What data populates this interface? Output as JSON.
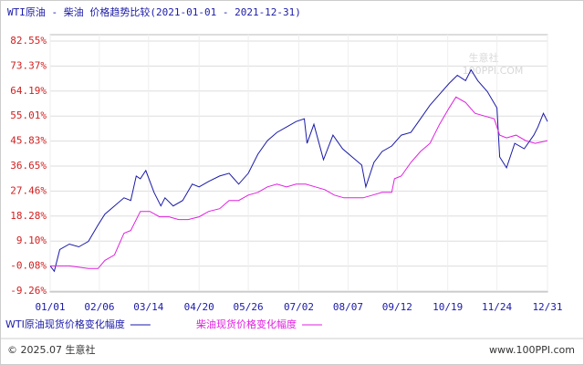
{
  "chart_data": {
    "type": "line",
    "title": "WTI原油 - 柴油 价格趋势比较(2021-01-01 - 2021-12-31)",
    "watermark": "生意社",
    "watermark_sub": "100PPI.COM",
    "footer_left": "© 2025.07 生意社",
    "footer_right": "www.100PPI.com",
    "ylim": [
      -9.26,
      82.55
    ],
    "yticks": [
      {
        "value": -9.26,
        "label": "-9.26%"
      },
      {
        "value": -0.08,
        "label": "-0.08%"
      },
      {
        "value": 9.1,
        "label": "9.10%"
      },
      {
        "value": 18.28,
        "label": "18.28%"
      },
      {
        "value": 27.46,
        "label": "27.46%"
      },
      {
        "value": 36.65,
        "label": "36.65%"
      },
      {
        "value": 45.83,
        "label": "45.83%"
      },
      {
        "value": 55.01,
        "label": "55.01%"
      },
      {
        "value": 64.19,
        "label": "64.19%"
      },
      {
        "value": 73.37,
        "label": "73.37%"
      },
      {
        "value": 82.55,
        "label": "82.55%"
      }
    ],
    "xticks": [
      "01/01",
      "02/06",
      "03/14",
      "04/20",
      "05/26",
      "07/02",
      "08/07",
      "09/12",
      "10/19",
      "11/24",
      "12/31"
    ],
    "grid": true,
    "series": [
      {
        "name": "WTI原油现货价格变化幅度",
        "color": "#1a1aa8",
        "x": [
          "01/01",
          "01/04",
          "01/08",
          "01/15",
          "01/22",
          "01/29",
          "02/05",
          "02/10",
          "02/17",
          "02/24",
          "03/01",
          "03/05",
          "03/08",
          "03/12",
          "03/18",
          "03/23",
          "03/26",
          "04/01",
          "04/08",
          "04/15",
          "04/20",
          "04/27",
          "05/05",
          "05/12",
          "05/19",
          "05/26",
          "06/02",
          "06/09",
          "06/16",
          "06/23",
          "06/30",
          "07/06",
          "07/08",
          "07/13",
          "07/20",
          "07/27",
          "08/03",
          "08/10",
          "08/17",
          "08/20",
          "08/26",
          "09/01",
          "09/08",
          "09/15",
          "09/22",
          "09/29",
          "10/06",
          "10/13",
          "10/20",
          "10/26",
          "11/01",
          "11/05",
          "11/10",
          "11/17",
          "11/24",
          "11/26",
          "12/01",
          "12/07",
          "12/14",
          "12/21",
          "12/24",
          "12/28",
          "12/31"
        ],
        "values": [
          0,
          -2,
          6,
          8,
          7,
          9,
          15,
          19,
          22,
          25,
          24,
          33,
          32,
          35,
          27,
          22,
          25,
          22,
          24,
          30,
          29,
          31,
          33,
          34,
          30,
          34,
          41,
          46,
          49,
          51,
          53,
          54,
          45,
          52,
          39,
          48,
          43,
          40,
          37,
          29,
          38,
          42,
          44,
          48,
          49,
          54,
          59,
          63,
          67,
          70,
          68,
          72,
          68,
          64,
          58,
          40,
          36,
          45,
          43,
          48,
          51,
          56,
          53
        ]
      },
      {
        "name": "柴油现货价格变化幅度",
        "color": "#e020e0",
        "x": [
          "01/01",
          "01/15",
          "01/29",
          "02/05",
          "02/10",
          "02/17",
          "02/24",
          "03/01",
          "03/08",
          "03/15",
          "03/22",
          "03/29",
          "04/05",
          "04/12",
          "04/20",
          "04/27",
          "05/05",
          "05/12",
          "05/19",
          "05/26",
          "06/02",
          "06/09",
          "06/16",
          "06/23",
          "06/30",
          "07/07",
          "07/14",
          "07/21",
          "07/28",
          "08/04",
          "08/11",
          "08/18",
          "08/25",
          "09/01",
          "09/08",
          "09/10",
          "09/15",
          "09/22",
          "09/29",
          "10/06",
          "10/13",
          "10/20",
          "10/25",
          "11/01",
          "11/08",
          "11/15",
          "11/22",
          "11/26",
          "12/01",
          "12/08",
          "12/15",
          "12/22",
          "12/31"
        ],
        "values": [
          0,
          0,
          -1,
          -1,
          2,
          4,
          12,
          13,
          20,
          20,
          18,
          18,
          17,
          17,
          18,
          20,
          21,
          24,
          24,
          26,
          27,
          29,
          30,
          29,
          30,
          30,
          29,
          28,
          26,
          25,
          25,
          25,
          26,
          27,
          27,
          32,
          33,
          38,
          42,
          45,
          52,
          58,
          62,
          60,
          56,
          55,
          54,
          48,
          47,
          48,
          46,
          45,
          46
        ]
      }
    ]
  }
}
